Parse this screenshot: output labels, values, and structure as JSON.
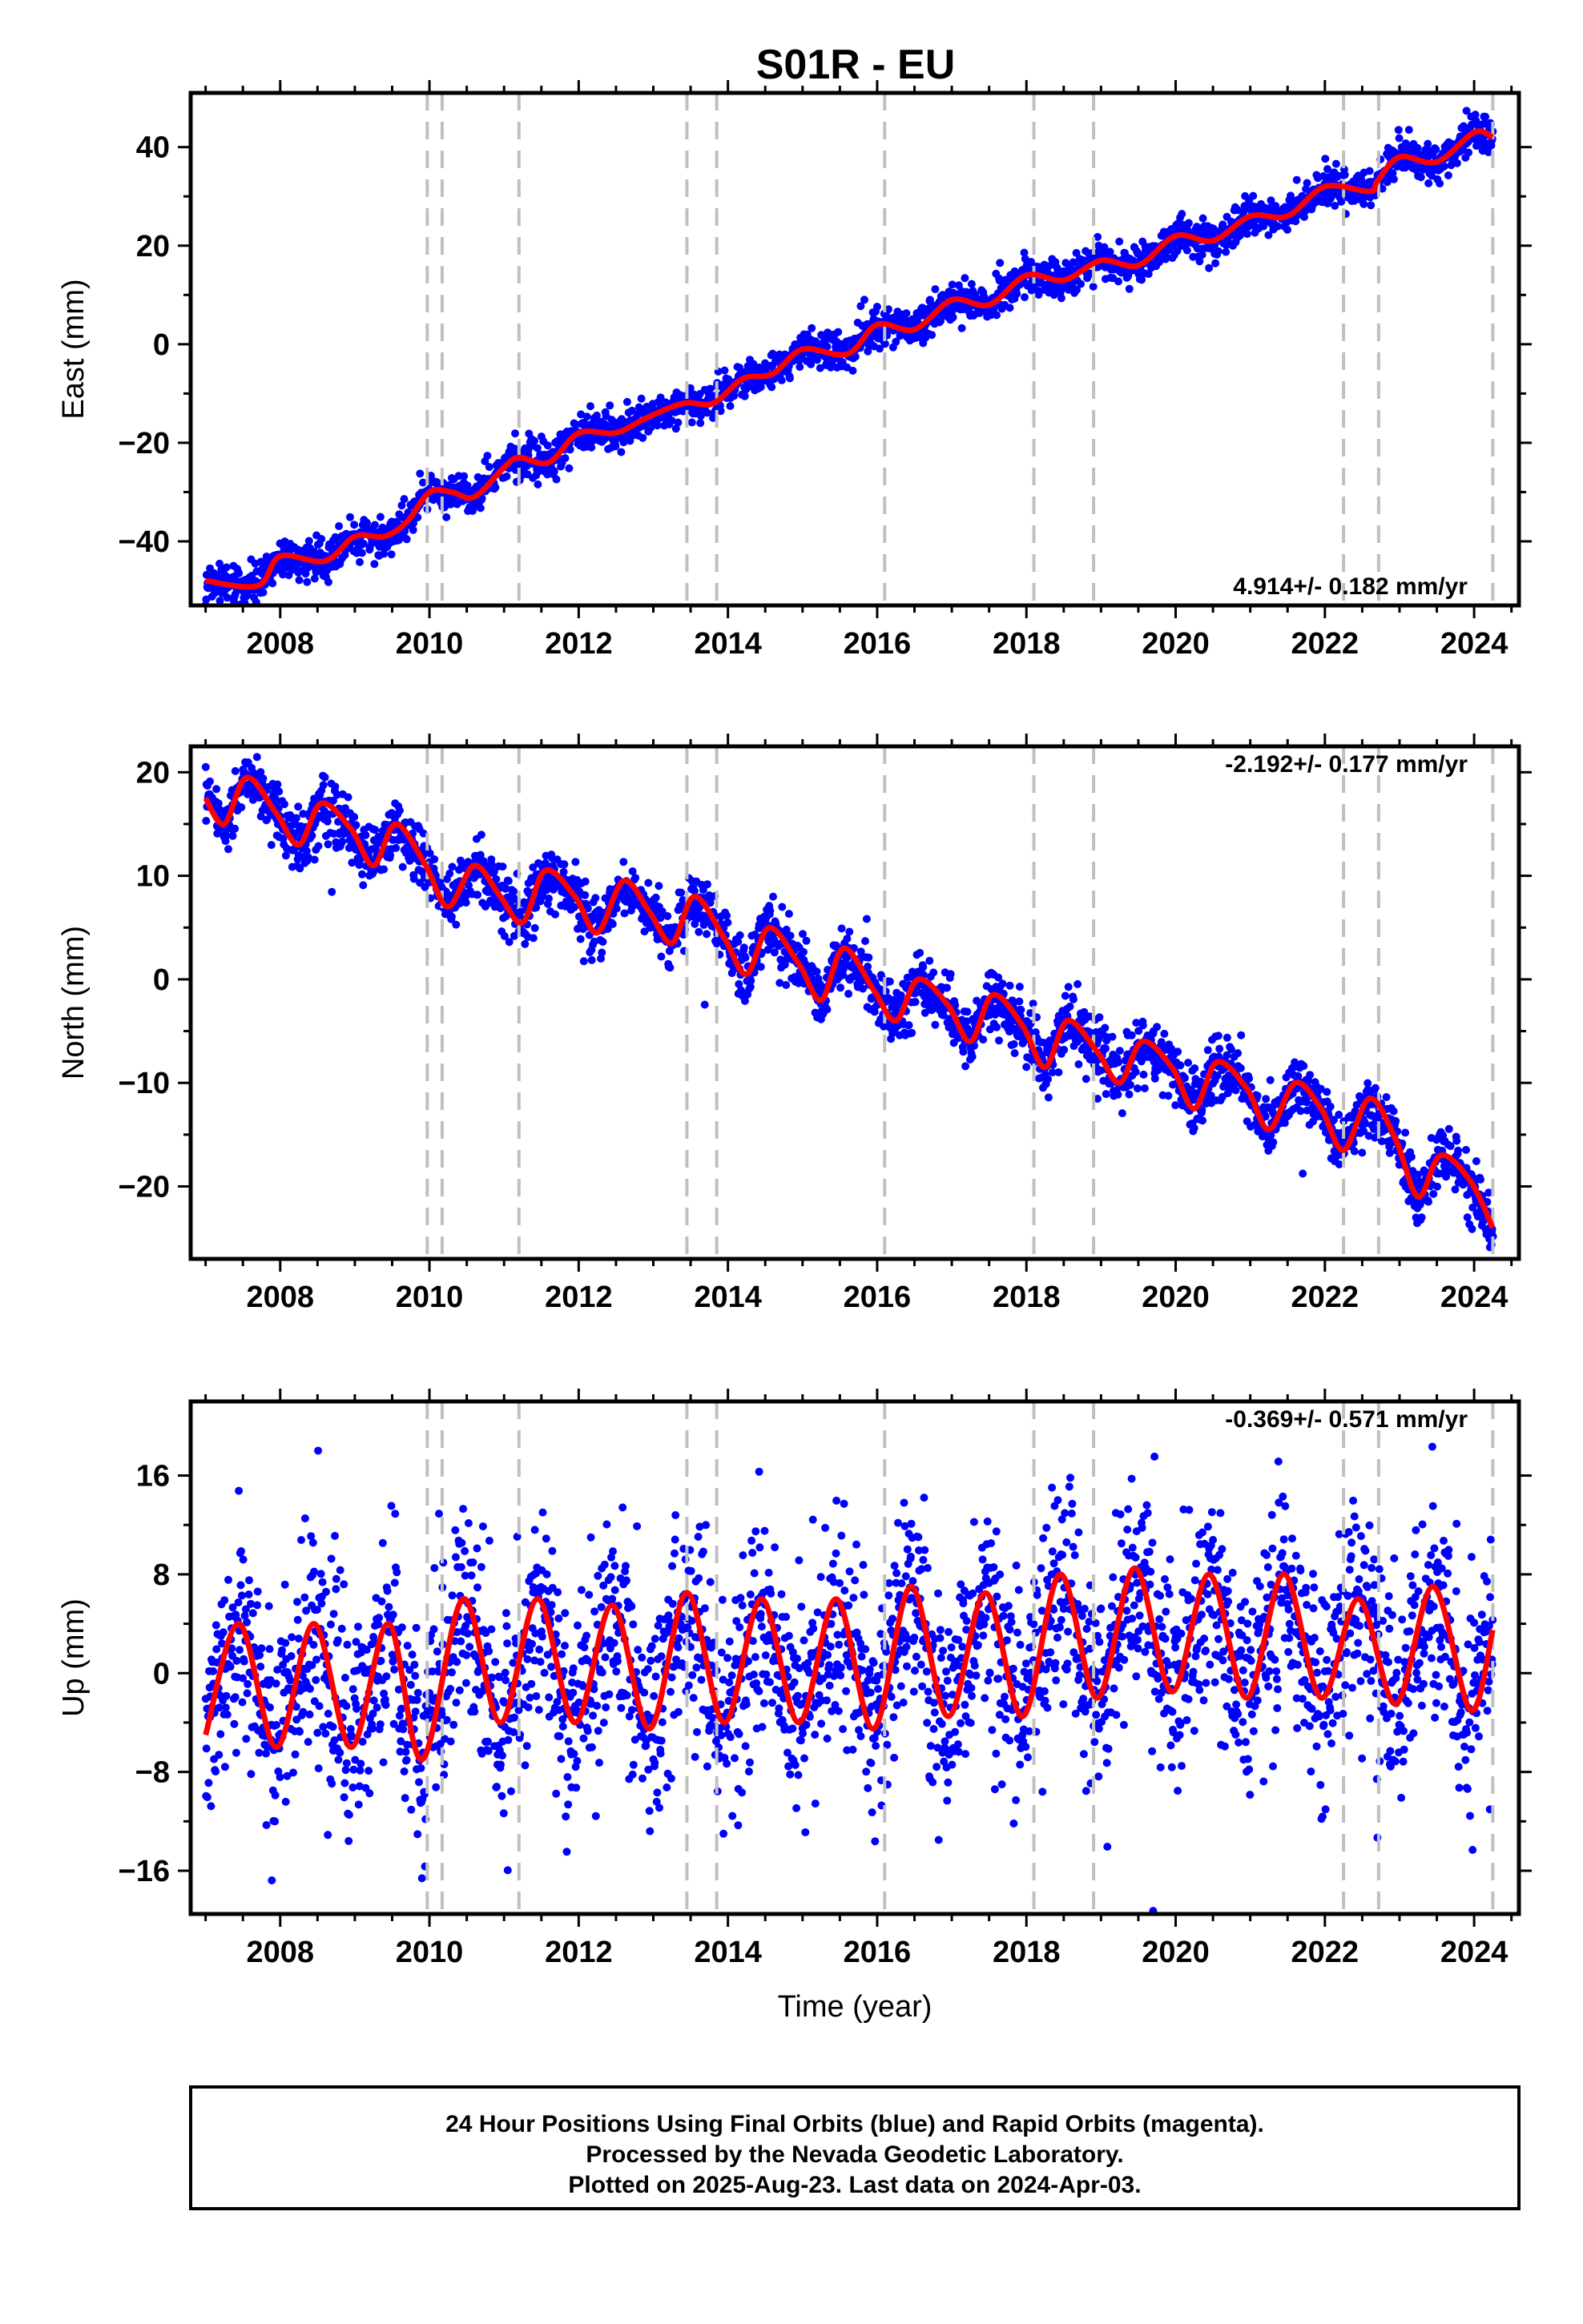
{
  "title": "S01R - EU",
  "footer": {
    "line1": "24 Hour Positions Using Final Orbits (blue) and Rapid Orbits (magenta).",
    "line2": "Processed by the Nevada Geodetic Laboratory.",
    "line3": "Plotted on 2025-Aug-23. Last data on 2024-Apr-03."
  },
  "colors": {
    "observations": "#0000ff",
    "model": "#ff0000",
    "breaks": "#c0c0c0",
    "frame": "#000000"
  },
  "chart_data": [
    {
      "type": "scatter",
      "component": "East",
      "ylabel": "East (mm)",
      "xlabel": "",
      "xlim": [
        2006.8,
        2024.6
      ],
      "ylim": [
        -53,
        51
      ],
      "yticks": [
        -40,
        -20,
        0,
        20,
        40
      ],
      "xticks": [
        2008,
        2010,
        2012,
        2014,
        2016,
        2018,
        2020,
        2022,
        2024
      ],
      "rate_label": "4.914+/- 0.182 mm/yr",
      "rate_label_position": "bottom-right",
      "grid": false,
      "series": [
        {
          "name": "",
          "role": "model",
          "x": [
            2007.0,
            2007.7,
            2008.0,
            2008.6,
            2009.0,
            2009.4,
            2009.7,
            2010.0,
            2010.3,
            2010.6,
            2011.0,
            2011.2,
            2011.6,
            2012.0,
            2012.5,
            2012.9,
            2013.4,
            2013.8,
            2014.2,
            2014.6,
            2015.0,
            2015.6,
            2016.0,
            2016.5,
            2017.0,
            2017.5,
            2018.0,
            2018.5,
            2019.0,
            2019.5,
            2020.0,
            2020.5,
            2021.0,
            2021.5,
            2022.0,
            2022.6,
            2022.7,
            2023.0,
            2023.5,
            2024.0,
            2024.25
          ],
          "values": [
            -48,
            -49,
            -43,
            -44,
            -39,
            -39,
            -36,
            -30,
            -30,
            -31,
            -25,
            -23,
            -24,
            -18,
            -18,
            -15,
            -12,
            -12,
            -7,
            -6,
            -1,
            -2,
            4,
            3,
            9,
            8,
            14,
            13,
            17,
            16,
            22,
            21,
            26,
            26,
            32,
            31,
            33,
            38,
            37,
            43,
            42
          ]
        }
      ],
      "scatter_spread_mm": 1.8
    },
    {
      "type": "scatter",
      "component": "North",
      "ylabel": "North (mm)",
      "xlabel": "",
      "xlim": [
        2006.8,
        2024.6
      ],
      "ylim": [
        -27,
        22.5
      ],
      "yticks": [
        -20,
        -10,
        0,
        10,
        20
      ],
      "xticks": [
        2008,
        2010,
        2012,
        2014,
        2016,
        2018,
        2020,
        2022,
        2024
      ],
      "rate_label": "-2.192+/- 0.177 mm/yr",
      "rate_label_position": "top-right",
      "grid": false,
      "series": [
        {
          "name": "",
          "role": "model",
          "x": [
            2007.0,
            2007.25,
            2007.55,
            2007.95,
            2008.25,
            2008.55,
            2008.95,
            2009.25,
            2009.55,
            2009.95,
            2010.25,
            2010.6,
            2010.95,
            2011.25,
            2011.55,
            2011.95,
            2012.25,
            2012.6,
            2012.95,
            2013.25,
            2013.55,
            2013.95,
            2014.25,
            2014.55,
            2014.95,
            2015.25,
            2015.55,
            2015.95,
            2016.25,
            2016.55,
            2016.95,
            2017.25,
            2017.55,
            2017.95,
            2018.25,
            2018.55,
            2018.95,
            2019.25,
            2019.55,
            2019.95,
            2020.25,
            2020.55,
            2020.95,
            2021.25,
            2021.6,
            2021.95,
            2022.25,
            2022.6,
            2022.95,
            2023.25,
            2023.55,
            2023.95,
            2024.25
          ],
          "values": [
            17.5,
            15,
            19.5,
            16,
            13,
            17,
            14.5,
            11,
            15,
            11,
            7,
            11,
            8,
            5.5,
            10.5,
            8,
            4.5,
            9.5,
            6.5,
            3.5,
            8,
            4,
            0.5,
            5,
            1.5,
            -2,
            3,
            -1,
            -4,
            0,
            -2.5,
            -6,
            -1.5,
            -4.5,
            -8.5,
            -4,
            -7,
            -10,
            -6,
            -8.5,
            -12.5,
            -8,
            -10.5,
            -14.5,
            -10,
            -12.5,
            -16.5,
            -11.5,
            -15.5,
            -21,
            -17,
            -19.5,
            -24
          ]
        }
      ],
      "scatter_spread_mm": 1.4
    },
    {
      "type": "scatter",
      "component": "Up",
      "ylabel": "Up (mm)",
      "xlabel": "Time (year)",
      "xlim": [
        2006.8,
        2024.6
      ],
      "ylim": [
        -19.5,
        22
      ],
      "yticks": [
        -16,
        -8,
        0,
        8,
        16
      ],
      "xticks": [
        2008,
        2010,
        2012,
        2014,
        2016,
        2018,
        2020,
        2022,
        2024
      ],
      "rate_label": "-0.369+/- 0.571 mm/yr",
      "rate_label_position": "top-right",
      "grid": false,
      "series": [
        {
          "name": "",
          "role": "model",
          "annual_amplitude_mm": 5.2,
          "annual_peak_phase_year": 0.45,
          "x": [
            2007.0,
            2007.45,
            2007.95,
            2008.45,
            2008.95,
            2009.45,
            2009.9,
            2010.45,
            2010.95,
            2011.45,
            2011.95,
            2012.45,
            2012.95,
            2013.45,
            2013.95,
            2014.45,
            2014.95,
            2015.45,
            2015.95,
            2016.45,
            2016.95,
            2017.45,
            2017.95,
            2018.45,
            2018.95,
            2019.45,
            2019.95,
            2020.45,
            2020.95,
            2021.45,
            2021.95,
            2022.45,
            2022.95,
            2023.45,
            2023.95,
            2024.25
          ],
          "values": [
            -5,
            4,
            -6,
            4,
            -6,
            4,
            -7,
            6,
            -4,
            6,
            -4,
            5.5,
            -4.5,
            6.5,
            -4,
            6,
            -4,
            6,
            -4.5,
            7,
            -3.5,
            6.5,
            -3.5,
            8,
            -2,
            8.5,
            -1.5,
            8,
            -2,
            8,
            -2,
            6,
            -2.5,
            7,
            -3,
            3.5
          ]
        }
      ],
      "scatter_spread_mm": 4.2
    }
  ],
  "break_years": [
    2009.97,
    2010.17,
    2011.2,
    2013.45,
    2013.85,
    2016.1,
    2018.1,
    2018.9,
    2022.25,
    2022.72,
    2024.25
  ]
}
